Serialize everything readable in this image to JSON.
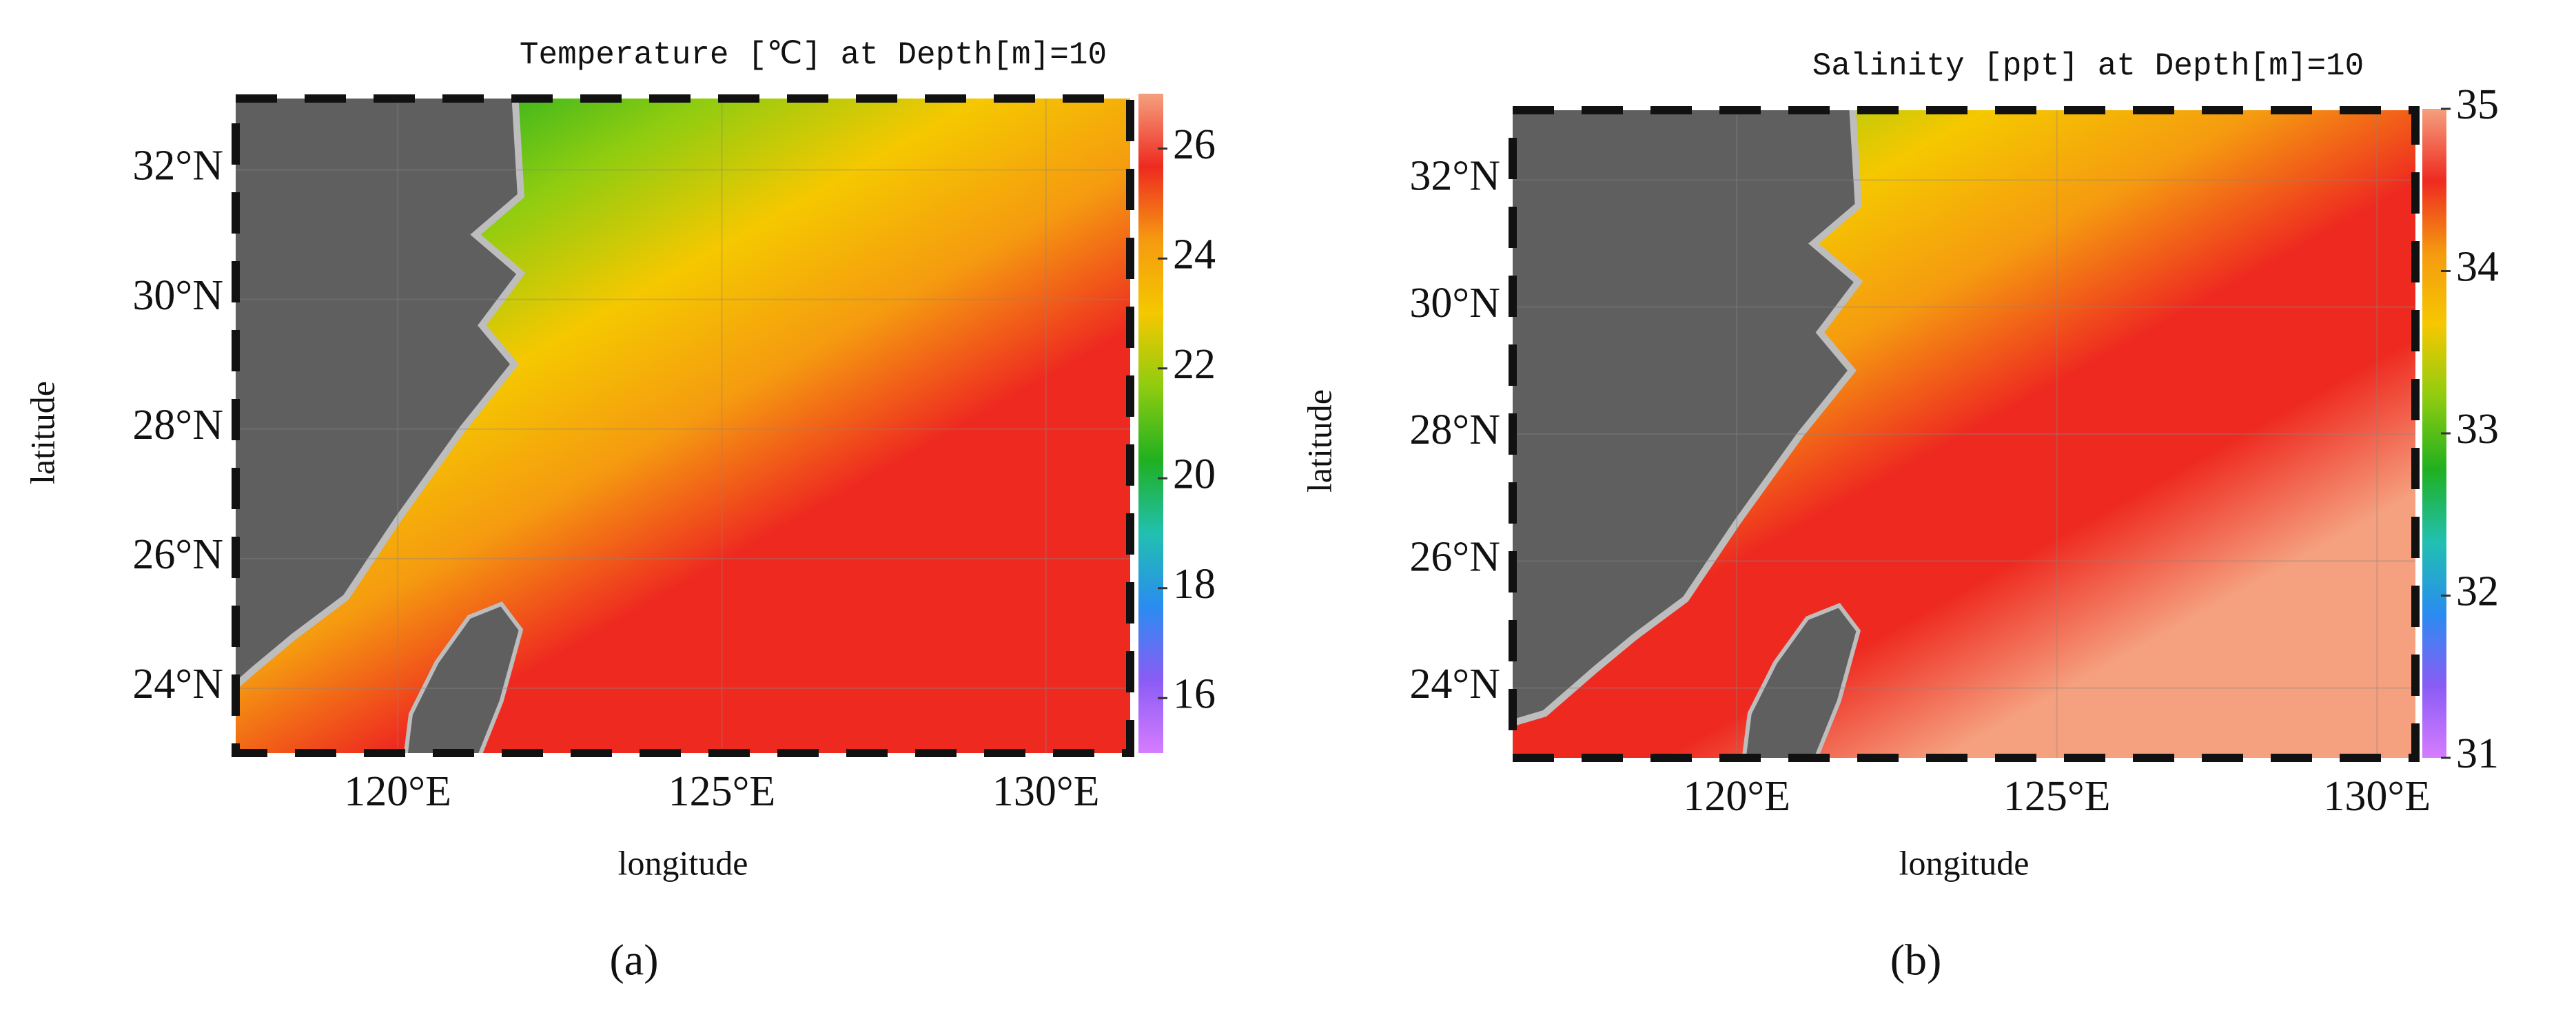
{
  "chart_data": [
    {
      "type": "map",
      "title": "Temperature [℃] at Depth[m]=10",
      "xlabel": "longitude",
      "ylabel": "latitude",
      "caption": "(a)",
      "xlim": [
        117.5,
        131.3
      ],
      "ylim": [
        23.0,
        33.1
      ],
      "xticks": [
        {
          "value": 120,
          "label": "120°E"
        },
        {
          "value": 125,
          "label": "125°E"
        },
        {
          "value": 130,
          "label": "130°E"
        }
      ],
      "yticks": [
        {
          "value": 24,
          "label": "24°N"
        },
        {
          "value": 26,
          "label": "26°N"
        },
        {
          "value": 28,
          "label": "28°N"
        },
        {
          "value": 30,
          "label": "30°N"
        },
        {
          "value": 32,
          "label": "32°N"
        }
      ],
      "clim": [
        15,
        27
      ],
      "cticks": [
        16,
        18,
        20,
        22,
        24,
        26
      ],
      "colormap": [
        "#d67cff",
        "#8a5cf5",
        "#2a8cf0",
        "#21c0b0",
        "#20b020",
        "#8fcc10",
        "#f5c800",
        "#f59a10",
        "#ee2a20",
        "#f5a07e"
      ]
    },
    {
      "type": "map",
      "title": "Salinity [ppt] at Depth[m]=10",
      "xlabel": "longitude",
      "ylabel": "latitude",
      "caption": "(b)",
      "xlim": [
        116.5,
        130.6
      ],
      "ylim": [
        22.9,
        33.1
      ],
      "xticks": [
        {
          "value": 120,
          "label": "120°E"
        },
        {
          "value": 125,
          "label": "125°E"
        },
        {
          "value": 130,
          "label": "130°E"
        }
      ],
      "yticks": [
        {
          "value": 24,
          "label": "24°N"
        },
        {
          "value": 26,
          "label": "26°N"
        },
        {
          "value": 28,
          "label": "28°N"
        },
        {
          "value": 30,
          "label": "30°N"
        },
        {
          "value": 32,
          "label": "32°N"
        }
      ],
      "clim": [
        31,
        35
      ],
      "cticks": [
        31,
        32,
        33,
        34,
        35
      ],
      "colormap": [
        "#d67cff",
        "#8a5cf5",
        "#2a8cf0",
        "#21c0b0",
        "#20b020",
        "#8fcc10",
        "#f5c800",
        "#f59a10",
        "#ee2a20",
        "#f5a07e"
      ]
    }
  ]
}
